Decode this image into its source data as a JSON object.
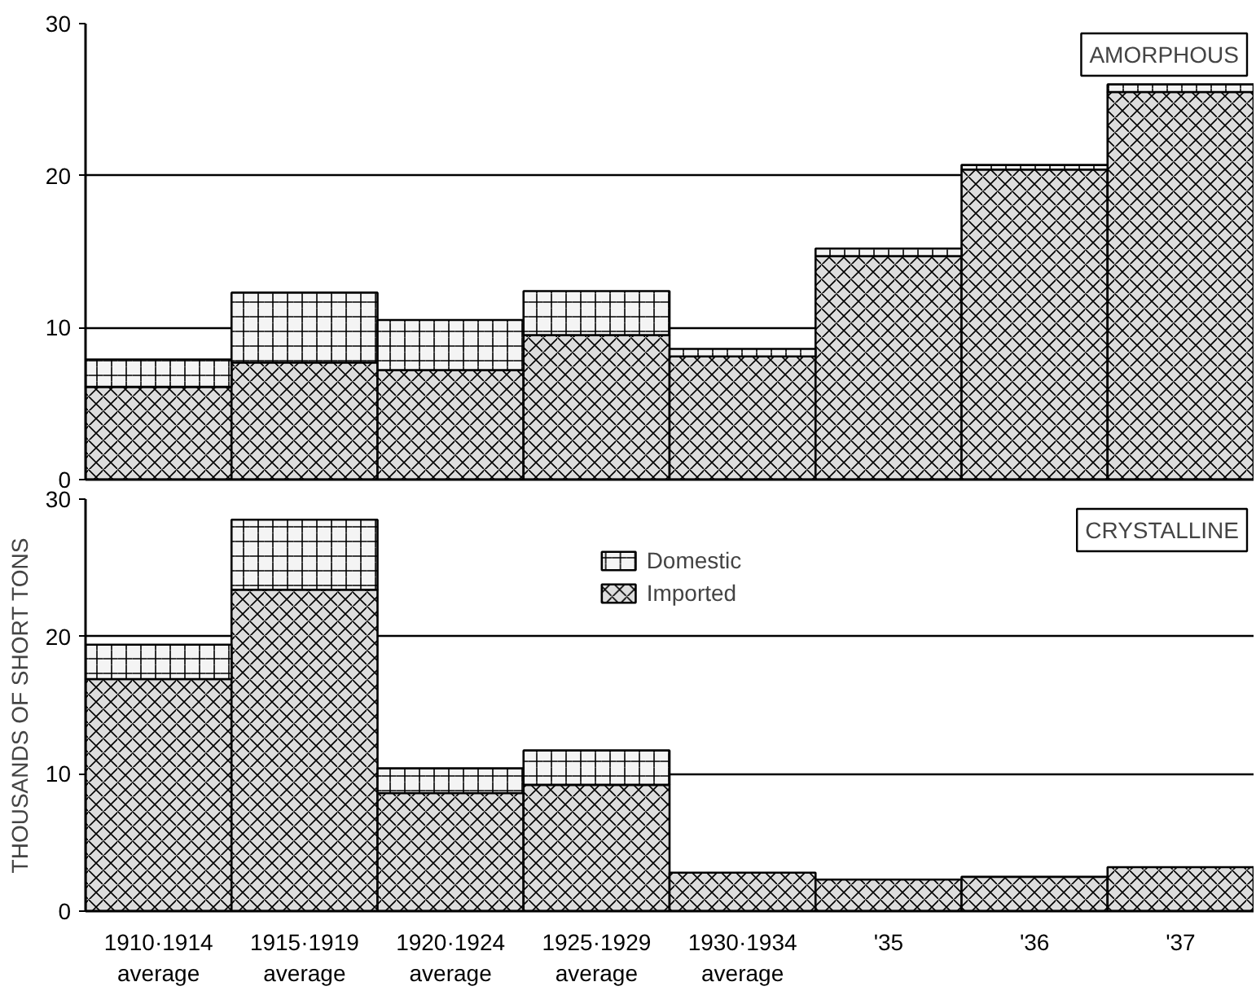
{
  "chart_data": [
    {
      "type": "bar",
      "stacked": true,
      "categories": [
        null,
        null,
        null,
        null,
        null,
        null,
        null,
        null
      ],
      "series": [
        {
          "color": "#dddddd",
          "values": [
            6.1,
            7.7,
            7.2,
            9.5,
            8.1,
            14.7,
            20.4,
            25.5
          ]
        },
        {
          "color": "#f4f4f4",
          "values": [
            1.8,
            4.6,
            3.3,
            2.9,
            0.5,
            0.5,
            0.3,
            0.5
          ]
        }
      ],
      "annotations": [
        "AMORPHOUS"
      ],
      "ylim": [
        0,
        30
      ],
      "yticks": [
        0,
        10,
        20,
        30
      ],
      "grid": "y",
      "legend": false,
      "tick_labels": "y"
    },
    {
      "type": "bar",
      "stacked": true,
      "categories": [
        "1910·1914\naverage",
        "1915·1919\naverage",
        "1920·1924\naverage",
        "1925·1929\naverage",
        "1930·1934\naverage",
        "'35",
        "'36",
        "'37"
      ],
      "series": [
        {
          "name": "Imported",
          "color": "#dddddd",
          "values": [
            16.9,
            23.4,
            8.6,
            9.2,
            2.8,
            2.3,
            2.5,
            3.2
          ]
        },
        {
          "name": "Domestic",
          "color": "#f4f4f4",
          "values": [
            2.5,
            5.1,
            1.8,
            2.5,
            null,
            null,
            null,
            null
          ]
        }
      ],
      "annotations": [
        "CRYSTALLINE"
      ],
      "ylabel": "THOUSANDS OF SHORT TONS",
      "ylim": [
        0,
        30
      ],
      "yticks": [
        0,
        10,
        20,
        30
      ],
      "grid": "y",
      "legend": "top"
    }
  ]
}
